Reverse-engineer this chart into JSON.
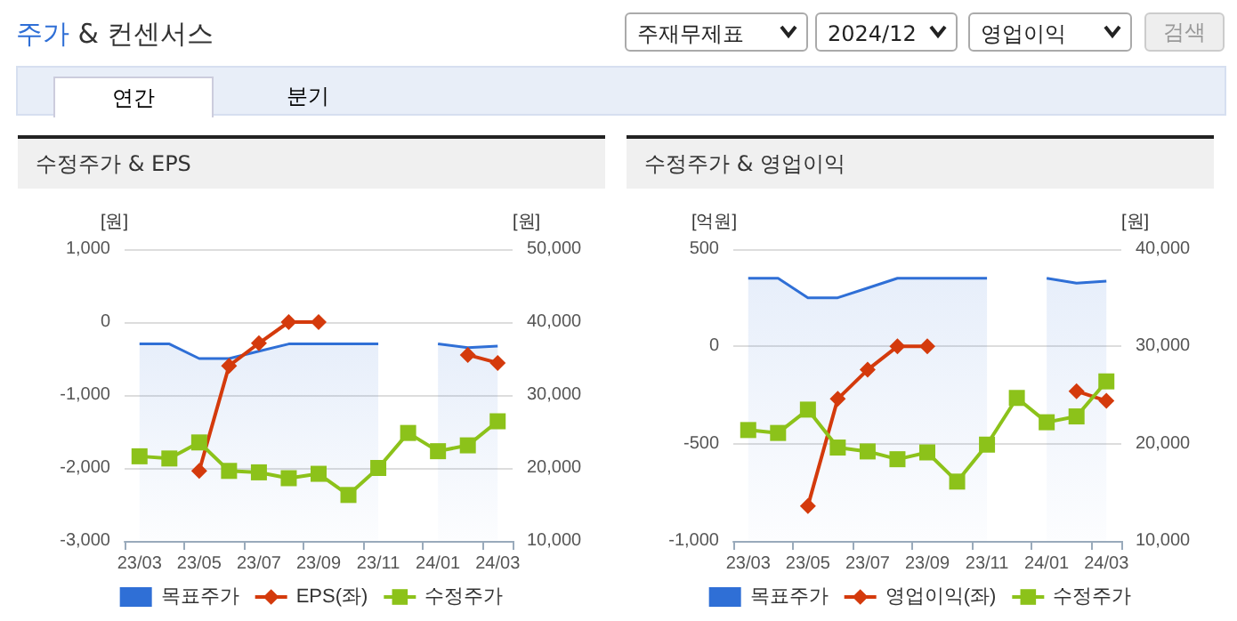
{
  "chart_data": [
    {
      "type": "other",
      "title": "주가 & 컨센서스",
      "annotations": [
        "주재무제표",
        "2024/12",
        "영업이익",
        "검색",
        "연간",
        "분기"
      ]
    },
    {
      "type": "line",
      "title": "수정주가 & EPS",
      "ylabel": "[원]",
      "y2label": "[원]",
      "categories": [
        "23/03",
        null,
        "23/05",
        null,
        "23/07",
        null,
        "23/09",
        null,
        "23/11",
        null,
        "24/01",
        null,
        "24/03"
      ],
      "series": [
        {
          "name": "목표주가",
          "type": "area",
          "axis": "y2",
          "color": "#2f6fd6",
          "marker": "none",
          "values": [
            37000,
            37000,
            35000,
            35000,
            36000,
            37000,
            37000,
            37000,
            37000,
            null,
            37000,
            36500,
            36700
          ]
        },
        {
          "name": "EPS(좌)",
          "type": "line",
          "color": "#d43a0c",
          "marker": "diamond",
          "values": [
            null,
            null,
            -2040,
            -600,
            -290,
            0,
            0,
            null,
            null,
            null,
            null,
            -450,
            -560
          ]
        },
        {
          "name": "수정주가",
          "type": "line",
          "axis": "y2",
          "color": "#8cc21a",
          "marker": "square",
          "values": [
            21600,
            21300,
            23500,
            19600,
            19400,
            18600,
            19200,
            16300,
            20000,
            24800,
            22300,
            23100,
            26400
          ]
        }
      ],
      "ylim": [
        -3000,
        1000
      ],
      "yticks": [
        {
          "value": -3000,
          "label": "-3,000"
        },
        {
          "value": -2000,
          "label": "-2,000"
        },
        {
          "value": -1000,
          "label": "-1,000"
        },
        0,
        {
          "value": 1000,
          "label": "1,000"
        }
      ],
      "y2lim": [
        10000,
        50000
      ],
      "y2ticks": [
        {
          "value": 10000,
          "label": "10,000"
        },
        {
          "value": 20000,
          "label": "20,000"
        },
        {
          "value": 30000,
          "label": "30,000"
        },
        {
          "value": 40000,
          "label": "40,000"
        },
        {
          "value": 50000,
          "label": "50,000"
        }
      ],
      "grid": "y",
      "legend": "bottom"
    },
    {
      "type": "line",
      "title": "수정주가 & 영업이익",
      "ylabel": "[억원]",
      "y2label": "[원]",
      "categories": [
        "23/03",
        null,
        "23/05",
        null,
        "23/07",
        null,
        "23/09",
        null,
        "23/11",
        null,
        "24/01",
        null,
        "24/03"
      ],
      "series": [
        {
          "name": "목표주가",
          "type": "area",
          "axis": "y2",
          "color": "#2f6fd6",
          "marker": "none",
          "values": [
            37000,
            37000,
            35000,
            35000,
            36000,
            37000,
            37000,
            37000,
            37000,
            null,
            37000,
            36500,
            36700
          ]
        },
        {
          "name": "영업이익(좌)",
          "type": "line",
          "color": "#d43a0c",
          "marker": "diamond",
          "values": [
            null,
            null,
            -820,
            -270,
            -120,
            0,
            0,
            null,
            null,
            null,
            null,
            -230,
            -280
          ]
        },
        {
          "name": "수정주가",
          "type": "line",
          "axis": "y2",
          "color": "#8cc21a",
          "marker": "square",
          "values": [
            21400,
            21100,
            23500,
            19600,
            19200,
            18400,
            19100,
            16100,
            19900,
            24700,
            22200,
            22800,
            26400
          ]
        }
      ],
      "ylim": [
        -1000,
        500
      ],
      "yticks": [
        {
          "value": -1000,
          "label": "-1,000"
        },
        -500,
        0,
        500
      ],
      "y2lim": [
        10000,
        40000
      ],
      "y2ticks": [
        {
          "value": 10000,
          "label": "10,000"
        },
        {
          "value": 20000,
          "label": "20,000"
        },
        {
          "value": 30000,
          "label": "30,000"
        },
        {
          "value": 40000,
          "label": "40,000"
        }
      ],
      "grid": "y",
      "legend": "bottom"
    }
  ]
}
